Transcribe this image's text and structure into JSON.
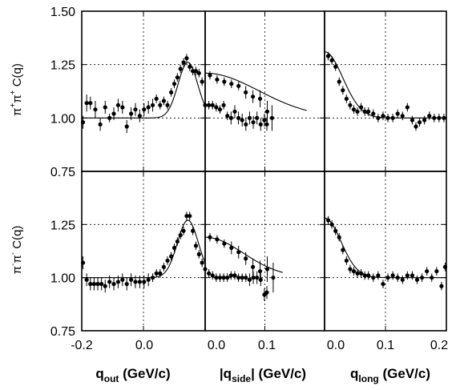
{
  "chart_data": {
    "type": "scatter",
    "description_rows": [
      "π+π+",
      "π-π-"
    ],
    "y_axis": {
      "ylim": [
        0.75,
        1.5
      ],
      "ticks": [
        0.75,
        1.0,
        1.25,
        1.5
      ],
      "tick_labels": [
        "0.75",
        "1.00",
        "1.25",
        "1.50"
      ],
      "row_labels": [
        {
          "particle_base": "ππ",
          "sup1": "+",
          "sup2": "+",
          "text": "C(q)"
        },
        {
          "particle_base": "ππ",
          "sup1": "-",
          "sup2": "-",
          "text": "C(q)"
        }
      ]
    },
    "x_axes": [
      {
        "xlim": [
          -0.2,
          0.0
        ],
        "ticks": [
          -0.2,
          -0.1,
          0.0
        ],
        "tick_labels": [
          "-0.2",
          "0.0"
        ],
        "label": {
          "main": "q",
          "sub": "out",
          "rest": " (GeV/c)"
        }
      },
      {
        "xlim": [
          0.0,
          0.1
        ],
        "ticks": [
          0.0,
          0.05,
          0.1
        ],
        "tick_labels": [
          "0.0",
          "0.1"
        ],
        "label": {
          "main": "|q",
          "sub": "side",
          "rest": "| (GeV/c)"
        }
      },
      {
        "xlim": [
          0.0,
          0.2
        ],
        "ticks": [
          0.0,
          0.1,
          0.2
        ],
        "tick_labels": [
          "0.0",
          "0.1",
          "0.2"
        ],
        "label": {
          "main": "q",
          "sub": "long",
          "rest": " (GeV/c)"
        }
      }
    ],
    "panels": [
      {
        "row": 0,
        "col": 0,
        "points": [
          [
            -0.198,
            0.98,
            0.03
          ],
          [
            -0.192,
            1.07,
            0.04
          ],
          [
            -0.186,
            1.07,
            0.03
          ],
          [
            -0.178,
            1.04,
            0.04
          ],
          [
            -0.17,
            0.97,
            0.03
          ],
          [
            -0.162,
            1.05,
            0.03
          ],
          [
            -0.155,
            1.0,
            0.02
          ],
          [
            -0.148,
            1.02,
            0.03
          ],
          [
            -0.141,
            1.06,
            0.03
          ],
          [
            -0.134,
            1.05,
            0.03
          ],
          [
            -0.127,
            0.96,
            0.03
          ],
          [
            -0.12,
            1.02,
            0.03
          ],
          [
            -0.113,
            1.04,
            0.03
          ],
          [
            -0.106,
            1.01,
            0.03
          ],
          [
            -0.099,
            1.04,
            0.03
          ],
          [
            -0.092,
            1.05,
            0.03
          ],
          [
            -0.085,
            1.06,
            0.03
          ],
          [
            -0.079,
            1.09,
            0.02
          ],
          [
            -0.073,
            1.06,
            0.02
          ],
          [
            -0.067,
            1.08,
            0.02
          ],
          [
            -0.061,
            1.06,
            0.02
          ],
          [
            -0.055,
            1.12,
            0.02
          ],
          [
            -0.05,
            1.16,
            0.02
          ],
          [
            -0.045,
            1.19,
            0.02
          ],
          [
            -0.04,
            1.23,
            0.02
          ],
          [
            -0.035,
            1.26,
            0.02
          ],
          [
            -0.03,
            1.28,
            0.02
          ],
          [
            -0.025,
            1.24,
            0.02
          ],
          [
            -0.02,
            1.22,
            0.02
          ],
          [
            -0.015,
            1.22,
            0.02
          ],
          [
            -0.01,
            1.21,
            0.02
          ],
          [
            -0.005,
            1.17,
            0.02
          ],
          [
            0.0,
            1.06,
            0.02
          ],
          [
            0.006,
            1.06,
            0.02
          ],
          [
            0.012,
            1.06,
            0.02
          ],
          [
            0.018,
            1.05,
            0.02
          ],
          [
            0.024,
            1.04,
            0.02
          ],
          [
            0.03,
            1.06,
            0.02
          ],
          [
            0.036,
            1.01,
            0.02
          ],
          [
            0.042,
            1.0,
            0.03
          ],
          [
            0.048,
            1.03,
            0.03
          ],
          [
            0.054,
            1.0,
            0.03
          ],
          [
            0.06,
            0.99,
            0.03
          ],
          [
            0.066,
            0.97,
            0.03
          ],
          [
            0.072,
            1.0,
            0.03
          ],
          [
            0.078,
            0.98,
            0.03
          ],
          [
            0.084,
            1.0,
            0.03
          ],
          [
            0.09,
            0.97,
            0.03
          ],
          [
            0.096,
            0.99,
            0.03
          ],
          [
            0.1,
            0.97,
            0.03
          ]
        ],
        "fit": {
          "type": "gauss",
          "center": -0.028,
          "width": 0.016,
          "base": 1.0,
          "amp": 0.26
        }
      },
      {
        "row": 0,
        "col": 1,
        "points": [
          [
            0.004,
            1.2,
            0.02
          ],
          [
            0.01,
            1.18,
            0.02
          ],
          [
            0.016,
            1.17,
            0.02
          ],
          [
            0.022,
            1.16,
            0.02
          ],
          [
            0.028,
            1.15,
            0.02
          ],
          [
            0.034,
            1.12,
            0.03
          ],
          [
            0.04,
            1.1,
            0.03
          ],
          [
            0.046,
            1.09,
            0.04
          ],
          [
            0.052,
            1.03,
            0.05
          ],
          [
            0.056,
            1.0,
            0.06
          ]
        ],
        "fit": {
          "type": "gauss",
          "center": 0.0,
          "width": 0.045,
          "base": 1.0,
          "amp": 0.21,
          "xmax": 0.085
        }
      },
      {
        "row": 0,
        "col": 2,
        "points": [
          [
            0.006,
            1.29,
            0.02
          ],
          [
            0.012,
            1.27,
            0.02
          ],
          [
            0.018,
            1.24,
            0.02
          ],
          [
            0.024,
            1.17,
            0.02
          ],
          [
            0.03,
            1.13,
            0.02
          ],
          [
            0.036,
            1.09,
            0.02
          ],
          [
            0.042,
            1.06,
            0.02
          ],
          [
            0.048,
            1.04,
            0.02
          ],
          [
            0.054,
            1.03,
            0.02
          ],
          [
            0.06,
            1.05,
            0.02
          ],
          [
            0.066,
            1.03,
            0.02
          ],
          [
            0.072,
            1.03,
            0.02
          ],
          [
            0.08,
            1.02,
            0.02
          ],
          [
            0.088,
            1.0,
            0.02
          ],
          [
            0.096,
            1.01,
            0.02
          ],
          [
            0.104,
            1.0,
            0.02
          ],
          [
            0.112,
            1.0,
            0.02
          ],
          [
            0.12,
            1.02,
            0.02
          ],
          [
            0.128,
            1.01,
            0.02
          ],
          [
            0.136,
            1.05,
            0.02
          ],
          [
            0.144,
            0.99,
            0.02
          ],
          [
            0.15,
            0.96,
            0.02
          ],
          [
            0.156,
            0.98,
            0.02
          ],
          [
            0.164,
            0.99,
            0.02
          ],
          [
            0.172,
            1.01,
            0.02
          ],
          [
            0.18,
            1.0,
            0.02
          ],
          [
            0.188,
            1.0,
            0.02
          ],
          [
            0.196,
            1.0,
            0.02
          ]
        ],
        "fit": {
          "type": "gauss",
          "center": 0.0,
          "width": 0.03,
          "base": 1.0,
          "amp": 0.31
        }
      },
      {
        "row": 1,
        "col": 0,
        "points": [
          [
            -0.198,
            1.07,
            0.03
          ],
          [
            -0.192,
            0.99,
            0.03
          ],
          [
            -0.186,
            0.97,
            0.03
          ],
          [
            -0.18,
            0.97,
            0.03
          ],
          [
            -0.174,
            0.97,
            0.03
          ],
          [
            -0.168,
            0.97,
            0.03
          ],
          [
            -0.162,
            0.96,
            0.03
          ],
          [
            -0.155,
            0.98,
            0.03
          ],
          [
            -0.148,
            0.97,
            0.03
          ],
          [
            -0.141,
            0.98,
            0.03
          ],
          [
            -0.134,
            0.99,
            0.03
          ],
          [
            -0.127,
            0.97,
            0.03
          ],
          [
            -0.12,
            0.99,
            0.03
          ],
          [
            -0.113,
            0.98,
            0.03
          ],
          [
            -0.106,
            0.98,
            0.03
          ],
          [
            -0.099,
            0.98,
            0.03
          ],
          [
            -0.092,
            0.99,
            0.03
          ],
          [
            -0.085,
            1.0,
            0.02
          ],
          [
            -0.079,
            1.02,
            0.02
          ],
          [
            -0.073,
            1.02,
            0.02
          ],
          [
            -0.067,
            1.05,
            0.02
          ],
          [
            -0.061,
            1.08,
            0.02
          ],
          [
            -0.055,
            1.1,
            0.02
          ],
          [
            -0.05,
            1.14,
            0.02
          ],
          [
            -0.045,
            1.17,
            0.02
          ],
          [
            -0.04,
            1.2,
            0.02
          ],
          [
            -0.035,
            1.22,
            0.02
          ],
          [
            -0.03,
            1.29,
            0.02
          ],
          [
            -0.025,
            1.29,
            0.02
          ],
          [
            -0.02,
            1.22,
            0.02
          ],
          [
            -0.015,
            1.15,
            0.02
          ],
          [
            -0.01,
            1.11,
            0.02
          ],
          [
            -0.005,
            1.07,
            0.02
          ],
          [
            0.0,
            1.04,
            0.02
          ],
          [
            0.006,
            1.02,
            0.02
          ],
          [
            0.012,
            1.01,
            0.02
          ],
          [
            0.018,
            1.0,
            0.02
          ],
          [
            0.024,
            1.0,
            0.02
          ],
          [
            0.03,
            1.0,
            0.02
          ],
          [
            0.036,
            1.0,
            0.02
          ],
          [
            0.042,
            1.01,
            0.02
          ],
          [
            0.048,
            1.01,
            0.02
          ],
          [
            0.054,
            1.0,
            0.02
          ],
          [
            0.06,
            1.0,
            0.02
          ],
          [
            0.066,
            1.0,
            0.02
          ],
          [
            0.072,
            0.99,
            0.03
          ],
          [
            0.078,
            1.0,
            0.03
          ],
          [
            0.084,
            1.0,
            0.03
          ],
          [
            0.09,
            0.99,
            0.03
          ],
          [
            0.096,
            0.92,
            0.03
          ],
          [
            0.1,
            0.93,
            0.03
          ]
        ],
        "fit": {
          "type": "gauss",
          "center": -0.028,
          "width": 0.017,
          "base": 1.0,
          "amp": 0.27
        }
      },
      {
        "row": 1,
        "col": 1,
        "points": [
          [
            0.004,
            1.19,
            0.02
          ],
          [
            0.01,
            1.18,
            0.02
          ],
          [
            0.016,
            1.16,
            0.02
          ],
          [
            0.022,
            1.14,
            0.03
          ],
          [
            0.028,
            1.12,
            0.03
          ],
          [
            0.034,
            1.09,
            0.03
          ],
          [
            0.04,
            1.05,
            0.04
          ],
          [
            0.046,
            1.03,
            0.05
          ],
          [
            0.052,
            1.04,
            0.06
          ],
          [
            0.057,
            1.0,
            0.07
          ]
        ],
        "fit": {
          "type": "gauss",
          "center": 0.0,
          "width": 0.032,
          "base": 1.0,
          "amp": 0.19,
          "xmax": 0.065
        }
      },
      {
        "row": 1,
        "col": 2,
        "points": [
          [
            0.006,
            1.27,
            0.02
          ],
          [
            0.012,
            1.25,
            0.02
          ],
          [
            0.018,
            1.22,
            0.02
          ],
          [
            0.024,
            1.19,
            0.02
          ],
          [
            0.03,
            1.13,
            0.02
          ],
          [
            0.036,
            1.08,
            0.02
          ],
          [
            0.042,
            1.04,
            0.02
          ],
          [
            0.048,
            1.03,
            0.02
          ],
          [
            0.054,
            1.02,
            0.02
          ],
          [
            0.06,
            1.02,
            0.02
          ],
          [
            0.066,
            1.01,
            0.02
          ],
          [
            0.072,
            1.01,
            0.02
          ],
          [
            0.08,
            1.0,
            0.02
          ],
          [
            0.088,
            1.01,
            0.02
          ],
          [
            0.096,
            0.97,
            0.02
          ],
          [
            0.104,
            1.0,
            0.02
          ],
          [
            0.112,
            1.01,
            0.02
          ],
          [
            0.12,
            1.0,
            0.02
          ],
          [
            0.128,
            0.99,
            0.02
          ],
          [
            0.136,
            1.01,
            0.02
          ],
          [
            0.144,
            1.01,
            0.02
          ],
          [
            0.152,
            0.99,
            0.02
          ],
          [
            0.16,
            1.0,
            0.02
          ],
          [
            0.168,
            1.03,
            0.02
          ],
          [
            0.176,
            1.0,
            0.02
          ],
          [
            0.184,
            1.03,
            0.02
          ],
          [
            0.192,
            0.96,
            0.02
          ],
          [
            0.198,
            1.05,
            0.02
          ]
        ],
        "fit": {
          "type": "gauss",
          "center": 0.0,
          "width": 0.027,
          "base": 1.0,
          "amp": 0.28
        }
      }
    ],
    "grid": true,
    "grid_style": "dotted"
  }
}
